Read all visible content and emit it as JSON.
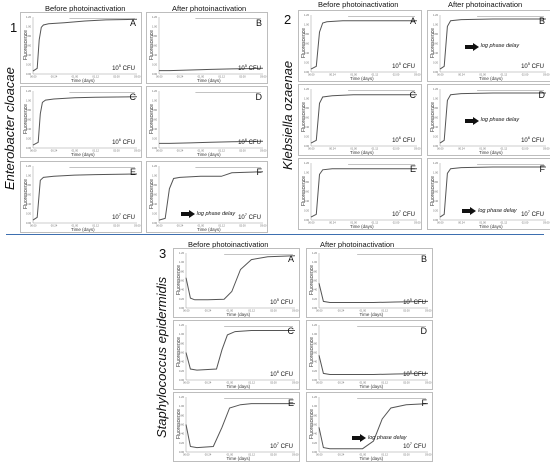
{
  "figure": {
    "groups": [
      {
        "id": "g1",
        "number": "1",
        "species": "Enterobacter cloacae",
        "before_label": "Before photoinactivation",
        "after_label": "After photoinactivation"
      },
      {
        "id": "g2",
        "number": "2",
        "species": "Klebsiella ozaenae",
        "before_label": "Before photoinactivation",
        "after_label": "After photoinactivation"
      },
      {
        "id": "g3",
        "number": "3",
        "species": "Staphylococcus epidermidis",
        "before_label": "Before photoinactivation",
        "after_label": "After photoinactivation"
      }
    ],
    "axis": {
      "ylabel": "Fluorescence",
      "xlabel": "Time (days)",
      "xticks": [
        "00.00",
        "00.24",
        "01.00",
        "01.12",
        "02.00",
        "03.00"
      ],
      "yticks_top": [
        "1.20",
        "1.00",
        "0.80",
        "0.60",
        "0.40",
        "0.20",
        "0.00"
      ]
    },
    "note_text": "log phase delay",
    "colors": {
      "curve": "#555555",
      "divider": "#3d6fb0",
      "frame": "#bdbdbd"
    }
  },
  "chart_data": [
    {
      "type": "line",
      "group": "1",
      "panel": "A",
      "condition": "Before photoinactivation",
      "inoculum": "10",
      "inoculum_exp": "5",
      "unit": " CFU",
      "note": false,
      "x": [
        0,
        0.04,
        0.06,
        0.08,
        0.1,
        0.15,
        0.3,
        0.5,
        0.7,
        1.0
      ],
      "y": [
        0.05,
        0.1,
        0.6,
        0.82,
        0.86,
        0.88,
        0.9,
        0.93,
        0.95,
        0.96
      ]
    },
    {
      "type": "line",
      "group": "1",
      "panel": "B",
      "condition": "After photoinactivation",
      "inoculum": "10",
      "inoculum_exp": "5",
      "unit": " CFU",
      "note": false,
      "x": [
        0,
        0.1,
        0.3,
        0.5,
        0.7,
        1.0
      ],
      "y": [
        0.06,
        0.06,
        0.07,
        0.08,
        0.09,
        0.1
      ]
    },
    {
      "type": "line",
      "group": "1",
      "panel": "C",
      "condition": "Before photoinactivation",
      "inoculum": "10",
      "inoculum_exp": "6",
      "unit": " CFU",
      "note": false,
      "x": [
        0,
        0.05,
        0.07,
        0.09,
        0.12,
        0.2,
        0.4,
        0.6,
        1.0
      ],
      "y": [
        0.05,
        0.1,
        0.6,
        0.8,
        0.84,
        0.86,
        0.88,
        0.89,
        0.9
      ]
    },
    {
      "type": "line",
      "group": "1",
      "panel": "D",
      "condition": "After photoinactivation",
      "inoculum": "10",
      "inoculum_exp": "6",
      "unit": " CFU",
      "note": false,
      "x": [
        0,
        0.1,
        0.3,
        0.5,
        0.7,
        1.0
      ],
      "y": [
        0.08,
        0.08,
        0.09,
        0.1,
        0.11,
        0.12
      ]
    },
    {
      "type": "line",
      "group": "1",
      "panel": "E",
      "condition": "Before photoinactivation",
      "inoculum": "10",
      "inoculum_exp": "7",
      "unit": " CFU",
      "note": false,
      "x": [
        0,
        0.04,
        0.07,
        0.1,
        0.2,
        0.4,
        0.6,
        1.0
      ],
      "y": [
        0.05,
        0.1,
        0.75,
        0.8,
        0.82,
        0.84,
        0.85,
        0.86
      ]
    },
    {
      "type": "line",
      "group": "1",
      "panel": "F",
      "condition": "After photoinactivation",
      "inoculum": "10",
      "inoculum_exp": "7",
      "unit": " CFU",
      "note": true,
      "x": [
        0,
        0.06,
        0.1,
        0.14,
        0.2,
        0.4,
        0.6,
        0.7,
        1.0
      ],
      "y": [
        0.05,
        0.08,
        0.6,
        0.78,
        0.8,
        0.82,
        0.82,
        0.88,
        0.9
      ]
    },
    {
      "type": "line",
      "group": "2",
      "panel": "A",
      "condition": "Before photoinactivation",
      "inoculum": "10",
      "inoculum_exp": "5",
      "unit": " CFU",
      "note": false,
      "x": [
        0,
        0.05,
        0.08,
        0.11,
        0.15,
        0.3,
        0.5,
        1.0
      ],
      "y": [
        0.05,
        0.1,
        0.7,
        0.86,
        0.88,
        0.9,
        0.9,
        0.9
      ]
    },
    {
      "type": "line",
      "group": "2",
      "panel": "B",
      "condition": "After photoinactivation",
      "inoculum": "10",
      "inoculum_exp": "5",
      "unit": " CFU",
      "note": true,
      "x": [
        0,
        0.04,
        0.07,
        0.1,
        0.2,
        0.5,
        1.0
      ],
      "y": [
        0.05,
        0.1,
        0.8,
        0.9,
        0.92,
        0.93,
        0.93
      ]
    },
    {
      "type": "line",
      "group": "2",
      "panel": "C",
      "condition": "Before photoinactivation",
      "inoculum": "10",
      "inoculum_exp": "6",
      "unit": " CFU",
      "note": false,
      "x": [
        0,
        0.05,
        0.08,
        0.11,
        0.2,
        0.4,
        1.0
      ],
      "y": [
        0.05,
        0.1,
        0.75,
        0.86,
        0.88,
        0.9,
        0.9
      ]
    },
    {
      "type": "line",
      "group": "2",
      "panel": "D",
      "condition": "After photoinactivation",
      "inoculum": "10",
      "inoculum_exp": "6",
      "unit": " CFU",
      "note": true,
      "x": [
        0,
        0.04,
        0.07,
        0.1,
        0.2,
        0.5,
        1.0
      ],
      "y": [
        0.05,
        0.1,
        0.8,
        0.9,
        0.92,
        0.93,
        0.93
      ]
    },
    {
      "type": "line",
      "group": "2",
      "panel": "E",
      "condition": "Before photoinactivation",
      "inoculum": "10",
      "inoculum_exp": "7",
      "unit": " CFU",
      "note": false,
      "x": [
        0,
        0.05,
        0.08,
        0.11,
        0.2,
        0.4,
        1.0
      ],
      "y": [
        0.05,
        0.1,
        0.8,
        0.88,
        0.9,
        0.9,
        0.9
      ]
    },
    {
      "type": "line",
      "group": "2",
      "panel": "F",
      "condition": "After photoinactivation",
      "inoculum": "10",
      "inoculum_exp": "7",
      "unit": " CFU",
      "note": true,
      "x": [
        0,
        0.04,
        0.07,
        0.1,
        0.2,
        0.5,
        1.0
      ],
      "y": [
        0.05,
        0.1,
        0.82,
        0.9,
        0.92,
        0.93,
        0.93
      ]
    },
    {
      "type": "line",
      "group": "3",
      "panel": "A",
      "condition": "Before photoinactivation",
      "inoculum": "10",
      "inoculum_exp": "5",
      "unit": " CFU",
      "note": false,
      "x": [
        0,
        0.04,
        0.08,
        0.2,
        0.35,
        0.42,
        0.5,
        0.6,
        0.75,
        1.0
      ],
      "y": [
        0.55,
        0.18,
        0.15,
        0.15,
        0.16,
        0.3,
        0.7,
        0.88,
        0.93,
        0.95
      ]
    },
    {
      "type": "line",
      "group": "3",
      "panel": "B",
      "condition": "After photoinactivation",
      "inoculum": "10",
      "inoculum_exp": "5",
      "unit": " CFU",
      "note": false,
      "x": [
        0,
        0.04,
        0.1,
        0.3,
        0.5,
        0.7,
        1.0
      ],
      "y": [
        0.45,
        0.12,
        0.1,
        0.1,
        0.1,
        0.11,
        0.12
      ]
    },
    {
      "type": "line",
      "group": "3",
      "panel": "C",
      "condition": "Before photoinactivation",
      "inoculum": "10",
      "inoculum_exp": "6",
      "unit": " CFU",
      "note": false,
      "x": [
        0,
        0.04,
        0.1,
        0.28,
        0.33,
        0.38,
        0.45,
        0.6,
        1.0
      ],
      "y": [
        0.5,
        0.2,
        0.18,
        0.2,
        0.55,
        0.82,
        0.88,
        0.9,
        0.9
      ]
    },
    {
      "type": "line",
      "group": "3",
      "panel": "D",
      "condition": "After photoinactivation",
      "inoculum": "10",
      "inoculum_exp": "6",
      "unit": " CFU",
      "note": false,
      "x": [
        0,
        0.04,
        0.1,
        0.3,
        0.5,
        0.7,
        1.0
      ],
      "y": [
        0.45,
        0.12,
        0.1,
        0.1,
        0.1,
        0.11,
        0.12
      ]
    },
    {
      "type": "line",
      "group": "3",
      "panel": "E",
      "condition": "Before photoinactivation",
      "inoculum": "10",
      "inoculum_exp": "7",
      "unit": " CFU",
      "note": false,
      "x": [
        0,
        0.04,
        0.1,
        0.25,
        0.33,
        0.4,
        0.5,
        0.6,
        1.0
      ],
      "y": [
        0.5,
        0.1,
        0.08,
        0.1,
        0.45,
        0.8,
        0.86,
        0.88,
        0.88
      ]
    },
    {
      "type": "line",
      "group": "3",
      "panel": "F",
      "condition": "After photoinactivation",
      "inoculum": "10",
      "inoculum_exp": "7",
      "unit": " CFU",
      "note": true,
      "x": [
        0,
        0.04,
        0.1,
        0.4,
        0.5,
        0.58,
        0.66,
        0.8,
        1.0
      ],
      "y": [
        0.45,
        0.08,
        0.06,
        0.06,
        0.2,
        0.6,
        0.8,
        0.86,
        0.88
      ]
    }
  ]
}
